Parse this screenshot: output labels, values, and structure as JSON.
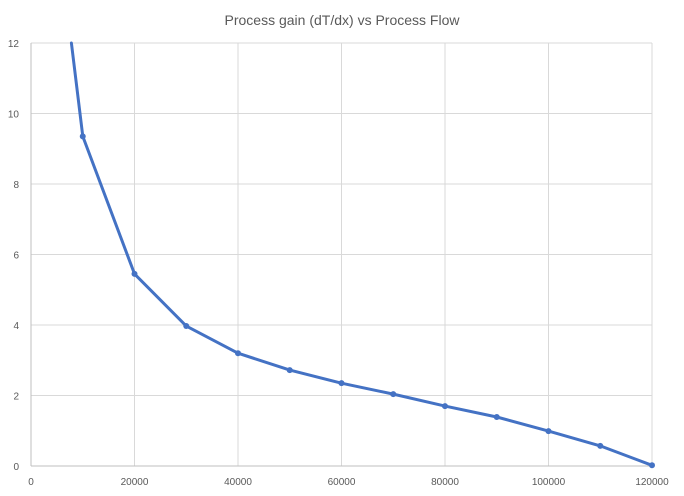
{
  "chart_data": {
    "type": "line",
    "title": "Process gain (dT/dx) vs Process Flow",
    "xlabel": "",
    "ylabel": "",
    "xlim": [
      0,
      120000
    ],
    "ylim": [
      0,
      12
    ],
    "x_ticks": [
      0,
      20000,
      40000,
      60000,
      80000,
      100000,
      120000
    ],
    "y_ticks": [
      0,
      2,
      4,
      6,
      8,
      10,
      12
    ],
    "x_tick_labels": [
      "0",
      "20000",
      "40000",
      "60000",
      "80000",
      "100000",
      "120000"
    ],
    "y_tick_labels": [
      "0",
      "2",
      "4",
      "6",
      "8",
      "10",
      "12"
    ],
    "grid": true,
    "legend": "none",
    "series": [
      {
        "color": "#4472c4",
        "x": [
          10000,
          20000,
          30000,
          40000,
          50000,
          60000,
          70000,
          80000,
          90000,
          100000,
          110000,
          120000
        ],
        "y": [
          9.35,
          5.45,
          3.97,
          3.2,
          2.72,
          2.35,
          2.04,
          1.7,
          1.39,
          0.99,
          0.57,
          0.02
        ],
        "line_start": {
          "x": 7800,
          "y": 12
        }
      }
    ]
  }
}
